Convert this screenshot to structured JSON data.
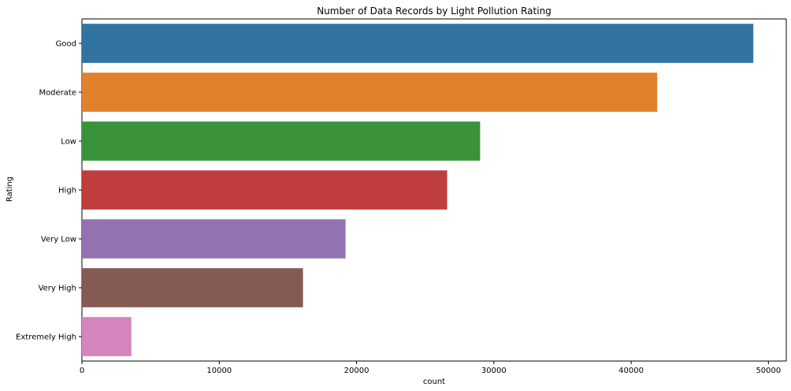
{
  "chart_data": {
    "type": "bar",
    "orientation": "horizontal",
    "title": "Number of Data Records by Light Pollution Rating",
    "xlabel": "count",
    "ylabel": "Rating",
    "categories": [
      "Good",
      "Moderate",
      "Low",
      "High",
      "Very Low",
      "Very High",
      "Extremely High"
    ],
    "values": [
      48900,
      41900,
      29000,
      26600,
      19200,
      16100,
      3600
    ],
    "colors": [
      "#3274a1",
      "#e1812c",
      "#3a923a",
      "#c03d3e",
      "#9372b2",
      "#845b53",
      "#d684bd"
    ],
    "xlim": [
      0,
      51300
    ],
    "xticks": [
      0,
      10000,
      20000,
      30000,
      40000,
      50000
    ],
    "grid": false,
    "legend": "none"
  }
}
